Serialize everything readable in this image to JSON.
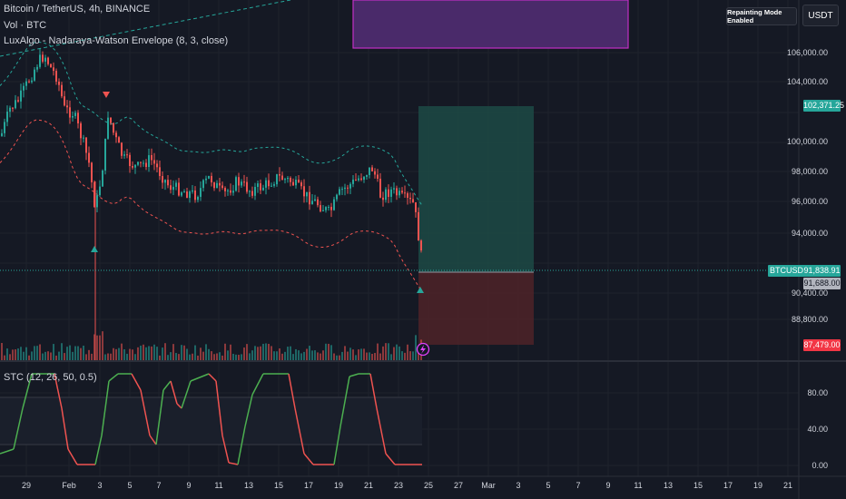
{
  "chart": {
    "symbol_title": "Bitcoin / TetherUS, 4h, BINANCE",
    "vol_label": "Vol · BTC",
    "envelope_label": "LuxAlgo - Nadaraya-Watson Envelope (8, 3, close)",
    "stc_label": "STC (12, 26, 50, 0.5)"
  },
  "toolbar": {
    "repaint_label": "Repainting Mode Enabled",
    "currency_label": "USDT"
  },
  "price_axis": [
    "106,000.00",
    "104,000.00",
    "100,000.00",
    "98,000.00",
    "96,000.00",
    "94,000.00",
    "90,400.00",
    "88,800.00"
  ],
  "price_labels": {
    "take_profit": "102,371.25",
    "ticker": "BTCUSDT",
    "current": "91,838.91",
    "entry": "91,688.00",
    "stop": "87,479.00"
  },
  "stc_axis": [
    "80.00",
    "40.00",
    "0.00"
  ],
  "time_axis": [
    "29",
    "Feb",
    "3",
    "5",
    "7",
    "9",
    "11",
    "13",
    "15",
    "17",
    "19",
    "21",
    "23",
    "25",
    "27",
    "Mar",
    "3",
    "5",
    "7",
    "9",
    "11",
    "13",
    "15",
    "17",
    "19",
    "21"
  ],
  "colors": {
    "bg": "#151924",
    "up": "#26a69a",
    "down": "#ef5350",
    "envelope_upper": "#26a69a",
    "envelope_lower": "#ef5350",
    "stc_up": "#4caf50",
    "stc_down": "#ef5350",
    "zone_purple": "#4a2a6a",
    "zone_purple_border": "#c02fc4",
    "take_profit_fill": "#1a4a45",
    "stop_fill": "#4a2025"
  },
  "icons": {
    "lightning": "lightning-icon"
  }
}
